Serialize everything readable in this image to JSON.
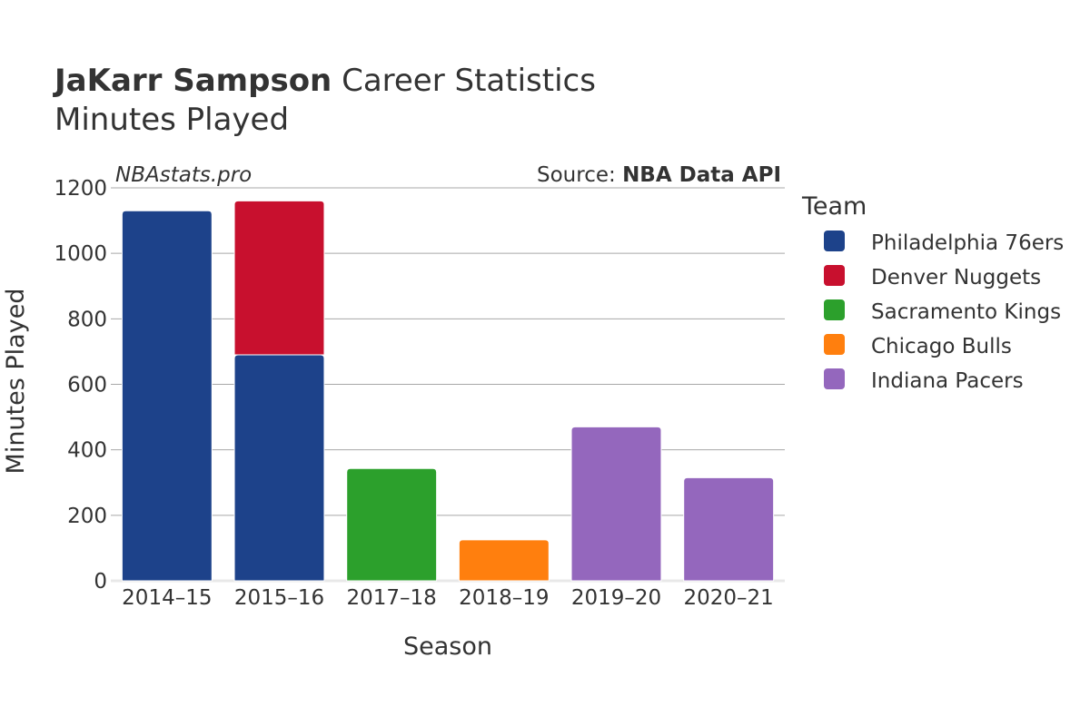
{
  "chart_data": {
    "type": "bar",
    "stacked": true,
    "title_bold": "JaKarr Sampson",
    "title_rest": " Career Statistics",
    "subtitle": "Minutes Played",
    "watermark": "NBAstats.pro",
    "source_prefix": "Source: ",
    "source_name": "NBA Data API",
    "xlabel": "Season",
    "ylabel": "Minutes Played",
    "ylim": [
      0,
      1200
    ],
    "yticks": [
      0,
      200,
      400,
      600,
      800,
      1000,
      1200
    ],
    "categories": [
      "2014–15",
      "2015–16",
      "2017–18",
      "2018–19",
      "2019–20",
      "2020–21"
    ],
    "legend_title": "Team",
    "series": [
      {
        "name": "Philadelphia 76ers",
        "color": "#1d428a",
        "values": [
          1130,
          690,
          0,
          0,
          0,
          0
        ]
      },
      {
        "name": "Denver Nuggets",
        "color": "#c8102e",
        "values": [
          0,
          470,
          0,
          0,
          0,
          0
        ]
      },
      {
        "name": "Sacramento Kings",
        "color": "#2ca02c",
        "values": [
          0,
          0,
          343,
          0,
          0,
          0
        ]
      },
      {
        "name": "Chicago Bulls",
        "color": "#ff7f0e",
        "values": [
          0,
          0,
          0,
          125,
          0,
          0
        ]
      },
      {
        "name": "Indiana Pacers",
        "color": "#9467bd",
        "values": [
          0,
          0,
          0,
          0,
          470,
          315
        ]
      }
    ]
  }
}
